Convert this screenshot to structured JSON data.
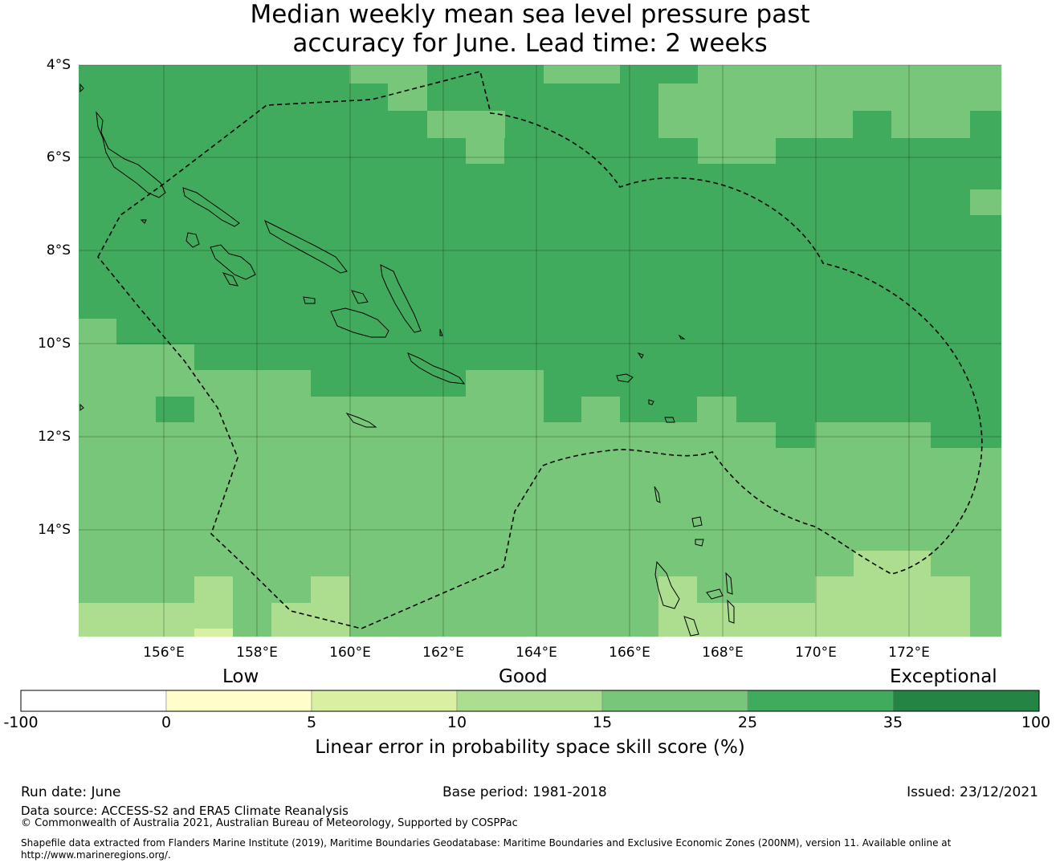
{
  "title": {
    "line1": "Median weekly mean sea level pressure past",
    "line2": "accuracy for June. Lead time: 2 weeks"
  },
  "map": {
    "region": "Solomon Islands",
    "lat_labels": [
      "4°S",
      "6°S",
      "8°S",
      "10°S",
      "12°S",
      "14°S"
    ],
    "lon_labels": [
      "156°E",
      "158°E",
      "160°E",
      "162°E",
      "164°E",
      "166°E",
      "168°E",
      "170°E",
      "172°E"
    ],
    "extent": {
      "lon": [
        154.2,
        174.0
      ],
      "lat": [
        -16.3,
        -4.0
      ]
    },
    "gridlines": true,
    "eez_boundary": "dashed",
    "coastlines": true
  },
  "colorbar": {
    "title": "Linear error in probability space skill score (%)",
    "ticks": [
      "-100",
      "0",
      "5",
      "10",
      "15",
      "25",
      "35",
      "100"
    ],
    "category_labels": {
      "low": "Low",
      "good": "Good",
      "exceptional": "Exceptional"
    },
    "colors": [
      "#ffffff",
      "#ffffcc",
      "#d9f0a3",
      "#addd8e",
      "#78c679",
      "#41ab5d",
      "#238443"
    ]
  },
  "footer": {
    "run_date": "Run date: June",
    "base_period": "Base period: 1981-2018",
    "issued": "Issued: 23/12/2021",
    "data_source": "Data source: ACCESS-S2 and ERA5 Climate Reanalysis",
    "copyright": "© Commonwealth of Australia 2021, Australian Bureau of Meteorology, Supported by COSPPac",
    "shapefile_line1": "Shapefile data extracted from Flanders Marine Institute (2019), Maritime Boundaries Geodatabase: Maritime Boundaries and Exclusive Economic Zones (200NM), version 11. Available online at",
    "shapefile_line2": "http://www.marineregions.org/."
  }
}
